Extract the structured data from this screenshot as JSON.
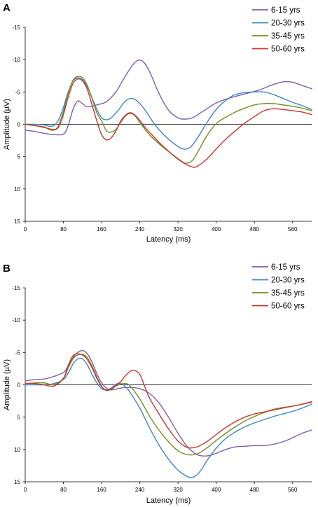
{
  "chart_data": [
    {
      "panel_label": "A",
      "type": "line",
      "xlabel": "Latency (ms)",
      "ylabel": "Amplitude (µV)",
      "xlim": [
        0,
        600
      ],
      "ylim": [
        15,
        -15
      ],
      "y_inverted": true,
      "xticks": [
        0,
        80,
        160,
        240,
        320,
        400,
        480,
        560
      ],
      "yticks": [
        -15,
        -10,
        -5,
        0,
        5,
        10,
        15
      ],
      "grid": false,
      "zero_line": true,
      "legend_position": "top-right",
      "series": [
        {
          "name": "6-15 yrs",
          "color": "#7F5FA8",
          "x": [
            0,
            20,
            40,
            60,
            80,
            90,
            100,
            110,
            120,
            130,
            150,
            170,
            190,
            210,
            230,
            245,
            260,
            280,
            300,
            320,
            335,
            350,
            370,
            400,
            430,
            460,
            490,
            510,
            530,
            545,
            560,
            580,
            600
          ],
          "y": [
            0.9,
            1.1,
            1.4,
            1.6,
            1.5,
            0.2,
            -2.3,
            -3.6,
            -3.2,
            -2.7,
            -3.0,
            -3.5,
            -5.0,
            -7.5,
            -9.6,
            -9.8,
            -8.2,
            -4.8,
            -2.2,
            -1.0,
            -0.8,
            -1.0,
            -1.9,
            -3.3,
            -4.1,
            -4.7,
            -5.3,
            -5.9,
            -6.4,
            -6.6,
            -6.5,
            -6.0,
            -5.5
          ]
        },
        {
          "name": "20-30 yrs",
          "color": "#3D85C6",
          "x": [
            0,
            20,
            40,
            50,
            60,
            70,
            80,
            90,
            100,
            110,
            120,
            130,
            140,
            150,
            160,
            170,
            180,
            195,
            210,
            225,
            240,
            255,
            270,
            290,
            310,
            330,
            345,
            360,
            380,
            400,
            420,
            440,
            460,
            480,
            500,
            520,
            540,
            560,
            580,
            600
          ],
          "y": [
            0.0,
            0.0,
            0.1,
            0.3,
            0.2,
            -0.7,
            -2.6,
            -5.0,
            -6.7,
            -7.2,
            -6.9,
            -5.8,
            -4.1,
            -2.3,
            -1.0,
            -0.7,
            -1.0,
            -2.2,
            -3.6,
            -4.0,
            -3.2,
            -1.8,
            -0.1,
            1.6,
            2.9,
            3.8,
            3.6,
            2.2,
            -0.2,
            -2.3,
            -3.7,
            -4.6,
            -4.9,
            -5.0,
            -5.0,
            -4.6,
            -4.0,
            -3.4,
            -2.9,
            -2.3
          ]
        },
        {
          "name": "35-45 yrs",
          "color": "#6E8F1E",
          "x": [
            0,
            20,
            40,
            50,
            60,
            70,
            80,
            90,
            100,
            110,
            120,
            130,
            140,
            150,
            160,
            170,
            180,
            190,
            200,
            210,
            220,
            230,
            240,
            260,
            280,
            300,
            320,
            335,
            350,
            365,
            380,
            400,
            420,
            440,
            460,
            480,
            500,
            520,
            540,
            560,
            580,
            600
          ],
          "y": [
            0.0,
            0.2,
            0.4,
            0.8,
            0.9,
            0.2,
            -2.0,
            -4.8,
            -6.8,
            -7.4,
            -7.2,
            -6.0,
            -4.0,
            -1.8,
            -0.5,
            1.0,
            1.2,
            0.8,
            -0.3,
            -1.3,
            -1.7,
            -1.3,
            -0.3,
            1.6,
            3.0,
            4.2,
            5.3,
            6.0,
            5.6,
            3.8,
            1.8,
            -0.1,
            -1.1,
            -1.9,
            -2.5,
            -3.0,
            -3.2,
            -3.2,
            -3.0,
            -2.8,
            -2.5,
            -2.1
          ]
        },
        {
          "name": "50-60 yrs",
          "color": "#CC3333",
          "x": [
            0,
            20,
            40,
            60,
            70,
            80,
            90,
            100,
            110,
            120,
            130,
            140,
            150,
            160,
            170,
            180,
            190,
            200,
            210,
            220,
            230,
            240,
            250,
            270,
            290,
            310,
            330,
            350,
            360,
            380,
            400,
            420,
            440,
            460,
            480,
            500,
            520,
            540,
            560,
            580,
            600
          ],
          "y": [
            0.0,
            0.2,
            0.5,
            0.8,
            0.4,
            -1.5,
            -4.2,
            -6.3,
            -7.0,
            -6.7,
            -5.4,
            -3.0,
            -0.5,
            1.6,
            2.4,
            2.1,
            1.0,
            -0.5,
            -1.4,
            -1.8,
            -1.4,
            -0.6,
            0.4,
            2.0,
            3.5,
            4.8,
            5.9,
            6.6,
            6.5,
            5.4,
            3.8,
            2.3,
            1.0,
            -0.2,
            -1.2,
            -2.1,
            -2.4,
            -2.3,
            -2.1,
            -1.9,
            -1.5
          ]
        }
      ]
    },
    {
      "panel_label": "B",
      "type": "line",
      "xlabel": "Latency (ms)",
      "ylabel": "Amplitude (µV)",
      "xlim": [
        0,
        600
      ],
      "ylim": [
        15,
        -15
      ],
      "y_inverted": true,
      "xticks": [
        0,
        80,
        160,
        240,
        320,
        400,
        480,
        560
      ],
      "yticks": [
        -15,
        -10,
        -5,
        0,
        5,
        10,
        15
      ],
      "grid": false,
      "zero_line": true,
      "legend_position": "top-right",
      "series": [
        {
          "name": "6-15 yrs",
          "color": "#7F5FA8",
          "x": [
            0,
            20,
            40,
            60,
            80,
            90,
            100,
            110,
            120,
            130,
            140,
            150,
            160,
            170,
            180,
            200,
            220,
            240,
            260,
            280,
            300,
            320,
            340,
            360,
            380,
            400,
            420,
            440,
            460,
            480,
            500,
            520,
            540,
            560,
            580,
            600
          ],
          "y": [
            -0.6,
            -0.8,
            -0.9,
            -1.3,
            -1.9,
            -2.9,
            -4.2,
            -5.0,
            -5.3,
            -4.8,
            -3.5,
            -1.7,
            -0.3,
            0.5,
            0.8,
            0.5,
            0.4,
            0.6,
            1.3,
            2.8,
            5.0,
            7.5,
            9.6,
            10.8,
            11.0,
            10.6,
            10.0,
            9.6,
            9.5,
            9.4,
            9.4,
            9.2,
            8.8,
            8.2,
            7.5,
            7.0
          ]
        },
        {
          "name": "20-30 yrs",
          "color": "#3D85C6",
          "x": [
            0,
            20,
            40,
            60,
            80,
            90,
            100,
            110,
            120,
            130,
            140,
            150,
            160,
            170,
            180,
            190,
            200,
            210,
            220,
            240,
            260,
            280,
            300,
            320,
            340,
            350,
            360,
            370,
            380,
            400,
            420,
            440,
            460,
            480,
            500,
            520,
            540,
            560,
            580,
            600
          ],
          "y": [
            0.0,
            0.0,
            0.0,
            -0.2,
            -0.8,
            -1.8,
            -3.2,
            -4.0,
            -4.0,
            -3.1,
            -1.6,
            -0.3,
            0.6,
            0.8,
            0.5,
            -0.1,
            -0.2,
            0.3,
            1.2,
            3.6,
            6.6,
            9.3,
            11.5,
            13.2,
            14.2,
            14.3,
            13.9,
            13.0,
            11.8,
            9.8,
            8.3,
            7.3,
            6.5,
            5.9,
            5.4,
            4.9,
            4.5,
            4.1,
            3.6,
            3.0
          ]
        },
        {
          "name": "35-45 yrs",
          "color": "#6E8F1E",
          "x": [
            0,
            20,
            40,
            60,
            80,
            90,
            100,
            110,
            120,
            130,
            140,
            150,
            160,
            170,
            180,
            190,
            200,
            210,
            220,
            240,
            260,
            280,
            300,
            320,
            340,
            360,
            380,
            400,
            420,
            440,
            460,
            480,
            500,
            520,
            540,
            560,
            580,
            600
          ],
          "y": [
            -0.2,
            -0.3,
            -0.3,
            0.0,
            -1.0,
            -2.6,
            -4.0,
            -4.6,
            -4.7,
            -4.2,
            -2.9,
            -1.2,
            0.2,
            0.9,
            0.7,
            0.2,
            -0.1,
            -0.2,
            0.2,
            2.2,
            4.8,
            7.0,
            8.8,
            10.2,
            10.8,
            10.7,
            9.8,
            8.6,
            7.5,
            6.5,
            5.6,
            4.9,
            4.3,
            3.8,
            3.5,
            3.3,
            3.0,
            2.7
          ]
        },
        {
          "name": "50-60 yrs",
          "color": "#CC3333",
          "x": [
            0,
            20,
            40,
            60,
            80,
            90,
            100,
            110,
            120,
            130,
            140,
            150,
            160,
            170,
            180,
            190,
            200,
            210,
            220,
            230,
            240,
            250,
            260,
            280,
            300,
            320,
            340,
            360,
            380,
            400,
            420,
            440,
            460,
            480,
            500,
            520,
            540,
            560,
            580,
            600
          ],
          "y": [
            -0.2,
            -0.2,
            0.0,
            0.2,
            -1.0,
            -3.0,
            -4.5,
            -4.8,
            -4.6,
            -3.9,
            -2.6,
            -1.0,
            0.3,
            0.8,
            0.6,
            0.1,
            -0.5,
            -1.4,
            -2.1,
            -2.2,
            -1.6,
            0.2,
            2.0,
            4.5,
            6.8,
            8.7,
            9.7,
            9.6,
            8.8,
            7.7,
            6.6,
            5.7,
            5.0,
            4.5,
            4.2,
            3.9,
            3.6,
            3.3,
            3.0,
            2.6
          ]
        }
      ]
    }
  ]
}
